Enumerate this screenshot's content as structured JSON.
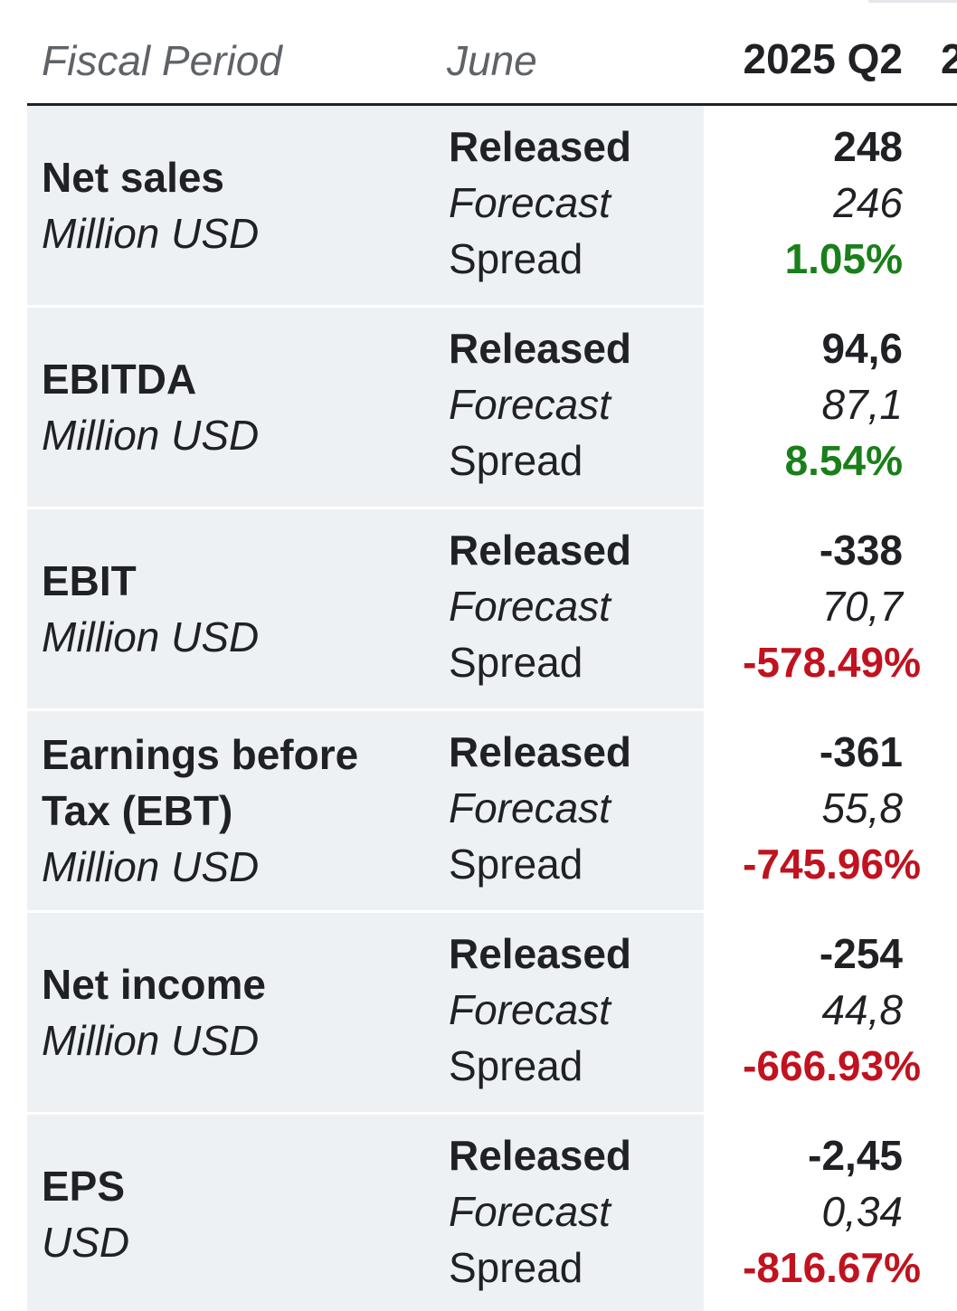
{
  "header": {
    "fiscal_label": "Fiscal Period",
    "month": "June",
    "period": "2025 Q2",
    "next_period_partial": "2"
  },
  "colors": {
    "positive": "#1a7f1a",
    "negative": "#c1121f",
    "row_bg": "#eef1f4"
  },
  "rows": [
    {
      "name": "Net sales",
      "unit": "Million USD",
      "released_label": "Released",
      "forecast_label": "Forecast",
      "spread_label": "Spread",
      "released": "248",
      "forecast": "246",
      "spread": "1.05%",
      "spread_sign": "positive"
    },
    {
      "name": "EBITDA",
      "unit": "Million USD",
      "released_label": "Released",
      "forecast_label": "Forecast",
      "spread_label": "Spread",
      "released": "94,6",
      "forecast": "87,1",
      "spread": "8.54%",
      "spread_sign": "positive"
    },
    {
      "name": "EBIT",
      "unit": "Million USD",
      "released_label": "Released",
      "forecast_label": "Forecast",
      "spread_label": "Spread",
      "released": "-338",
      "forecast": "70,7",
      "spread": "-578.49%",
      "spread_sign": "negative"
    },
    {
      "name": "Earnings before Tax (EBT)",
      "unit": "Million USD",
      "released_label": "Released",
      "forecast_label": "Forecast",
      "spread_label": "Spread",
      "released": "-361",
      "forecast": "55,8",
      "spread": "-745.96%",
      "spread_sign": "negative"
    },
    {
      "name": "Net income",
      "unit": "Million USD",
      "released_label": "Released",
      "forecast_label": "Forecast",
      "spread_label": "Spread",
      "released": "-254",
      "forecast": "44,8",
      "spread": "-666.93%",
      "spread_sign": "negative"
    },
    {
      "name": "EPS",
      "unit": "USD",
      "released_label": "Released",
      "forecast_label": "Forecast",
      "spread_label": "Spread",
      "released": "-2,45",
      "forecast": "0,34",
      "spread": "-816.67%",
      "spread_sign": "negative"
    }
  ]
}
